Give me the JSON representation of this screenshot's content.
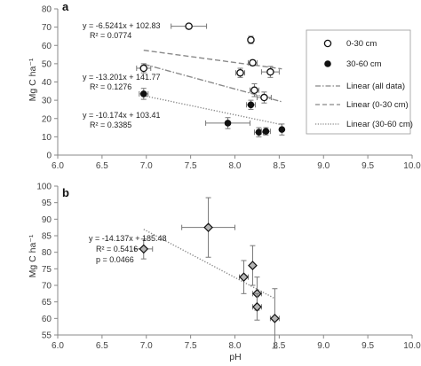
{
  "chart_data": [
    {
      "type": "scatter",
      "panel": "a",
      "ylabel": "Mg C ha⁻¹",
      "xlim": [
        6.0,
        10.0
      ],
      "ylim": [
        0,
        80
      ],
      "xticks": [
        "6.0",
        "6.5",
        "7.0",
        "7.5",
        "8.0",
        "8.5",
        "9.0",
        "9.5",
        "10.0"
      ],
      "yticks": [
        "0",
        "10",
        "20",
        "30",
        "40",
        "50",
        "60",
        "70",
        "80"
      ],
      "grid": false,
      "legend_position": "right",
      "legend": [
        "0-30 cm",
        "30-60 cm",
        "Linear (all data)",
        "Linear (0-30 cm)",
        "Linear (30-60 cm)"
      ],
      "series": [
        {
          "name": "0-30 cm",
          "marker": "open-circle",
          "points": [
            {
              "x": 7.48,
              "y": 70.5,
              "xerr": 0.2,
              "yerr": 0.0
            },
            {
              "x": 8.18,
              "y": 63.0,
              "xerr": 0.0,
              "yerr": 2.0
            },
            {
              "x": 6.97,
              "y": 47.5,
              "xerr": 0.08,
              "yerr": 2.5
            },
            {
              "x": 8.06,
              "y": 45.0,
              "xerr": 0.05,
              "yerr": 2.5
            },
            {
              "x": 8.2,
              "y": 50.5,
              "xerr": 0.05,
              "yerr": 1.5
            },
            {
              "x": 8.4,
              "y": 45.5,
              "xerr": 0.1,
              "yerr": 3.0
            },
            {
              "x": 8.22,
              "y": 35.5,
              "xerr": 0.05,
              "yerr": 3.5
            },
            {
              "x": 8.33,
              "y": 31.5,
              "xerr": 0.08,
              "yerr": 3.0
            }
          ]
        },
        {
          "name": "30-60 cm",
          "marker": "filled-circle",
          "points": [
            {
              "x": 6.97,
              "y": 33.5,
              "xerr": 0.05,
              "yerr": 3.0
            },
            {
              "x": 8.18,
              "y": 27.5,
              "xerr": 0.05,
              "yerr": 2.5
            },
            {
              "x": 7.92,
              "y": 17.5,
              "xerr": 0.25,
              "yerr": 3.0
            },
            {
              "x": 8.27,
              "y": 12.5,
              "xerr": 0.05,
              "yerr": 2.5
            },
            {
              "x": 8.35,
              "y": 13.0,
              "xerr": 0.05,
              "yerr": 2.0
            },
            {
              "x": 8.53,
              "y": 14.0,
              "xerr": 0.0,
              "yerr": 3.0
            }
          ]
        }
      ],
      "trendlines": [
        {
          "name": "Linear (0-30 cm)",
          "style": "dashed",
          "slope": -6.5241,
          "intercept": 102.83,
          "x_range": [
            6.97,
            8.53
          ]
        },
        {
          "name": "Linear (all data)",
          "style": "dash-dot",
          "slope": -13.201,
          "intercept": 141.77,
          "x_range": [
            6.97,
            8.53
          ]
        },
        {
          "name": "Linear (30-60 cm)",
          "style": "dotted",
          "slope": -10.174,
          "intercept": 103.41,
          "x_range": [
            6.97,
            8.53
          ]
        }
      ],
      "annotations": [
        {
          "lines": [
            "y = -6.5241x + 102.83",
            "R² = 0.0774"
          ]
        },
        {
          "lines": [
            "y = -13.201x + 141.77",
            "R² = 0.1276"
          ]
        },
        {
          "lines": [
            "y = -10.174x + 103.41",
            "R² = 0.3385"
          ]
        }
      ]
    },
    {
      "type": "scatter",
      "panel": "b",
      "xlabel": "pH",
      "ylabel": "Mg C ha⁻¹",
      "xlim": [
        6.0,
        10.0
      ],
      "ylim": [
        55,
        100
      ],
      "xticks": [
        "6.0",
        "6.5",
        "7.0",
        "7.5",
        "8.0",
        "8.5",
        "9.0",
        "9.5",
        "10.0"
      ],
      "yticks": [
        "55",
        "60",
        "65",
        "70",
        "75",
        "80",
        "85",
        "90",
        "95",
        "100"
      ],
      "grid": false,
      "series": [
        {
          "marker": "diamond",
          "points": [
            {
              "x": 6.97,
              "y": 81.0,
              "xerr": 0.1,
              "yerr": 3.0
            },
            {
              "x": 7.7,
              "y": 87.5,
              "xerr": 0.3,
              "yerr": 9.0
            },
            {
              "x": 8.1,
              "y": 72.5,
              "xerr": 0.05,
              "yerr": 5.0
            },
            {
              "x": 8.2,
              "y": 76.0,
              "xerr": 0.0,
              "yerr": 6.0
            },
            {
              "x": 8.25,
              "y": 67.5,
              "xerr": 0.05,
              "yerr": 5.0
            },
            {
              "x": 8.25,
              "y": 63.5,
              "xerr": 0.05,
              "yerr": 4.0
            },
            {
              "x": 8.45,
              "y": 60.0,
              "xerr": 0.05,
              "yerr": 9.0
            }
          ]
        }
      ],
      "trendlines": [
        {
          "style": "dotted",
          "slope": -14.137,
          "intercept": 185.48,
          "x_range": [
            6.97,
            8.45
          ]
        }
      ],
      "annotations": [
        {
          "lines": [
            "y = -14.137x + 185.48",
            "R² = 0.5416",
            "p = 0.0466"
          ]
        }
      ]
    }
  ]
}
